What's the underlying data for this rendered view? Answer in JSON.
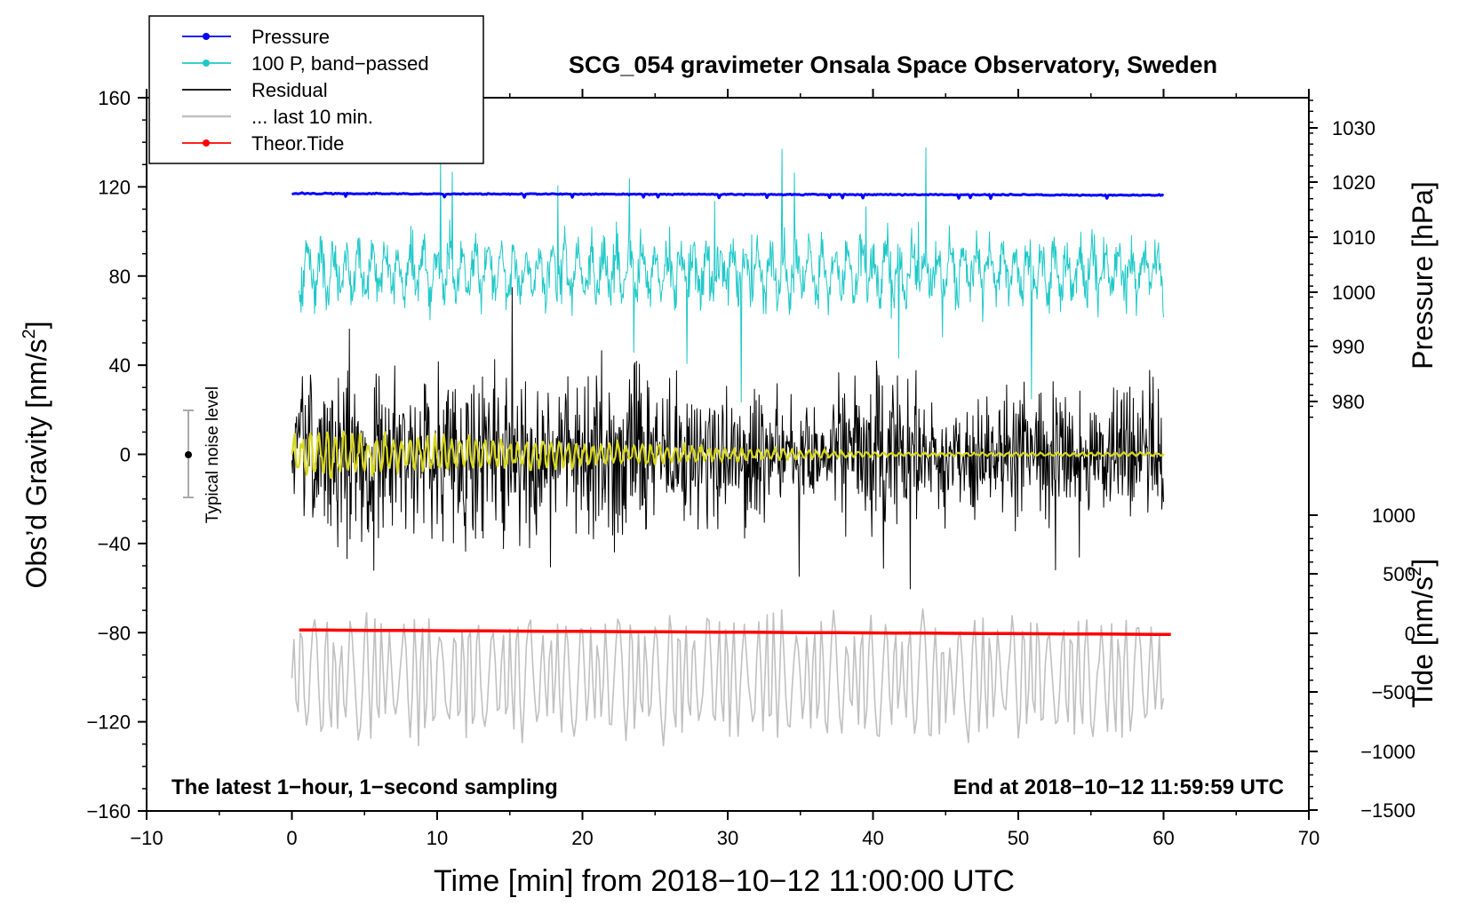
{
  "chart_data": {
    "type": "line",
    "title": "SCG_054 gravimeter Onsala Space Observatory, Sweden",
    "xlabel": "Time [min] from 2018−10−12 11:00:00 UTC",
    "ylabel_left": "Obs’d Gravity [nm/s",
    "ylabel_left_sup": "2",
    "ylabel_left_end": "]",
    "ylabel_pressure": "Pressure [hPa]",
    "ylabel_tide": "Tide [nm/s",
    "ylabel_tide_sup": "2",
    "ylabel_tide_end": "]",
    "xlim": [
      -10,
      70
    ],
    "ylim": [
      -160,
      160
    ],
    "x_ticks": [
      "−10",
      "0",
      "10",
      "20",
      "30",
      "40",
      "50",
      "60",
      "70"
    ],
    "y_ticks": [
      "160",
      "120",
      "80",
      "40",
      "0",
      "−40",
      "−80",
      "−120",
      "−160"
    ],
    "pressure_ticks": [
      "1030",
      "1020",
      "1010",
      "1000",
      "990",
      "980"
    ],
    "tide_ticks": [
      "1000",
      "500",
      "0",
      "−500",
      "−1000",
      "−1500"
    ],
    "legend": [
      {
        "label": "Pressure",
        "color": "#0000ff",
        "marker": true
      },
      {
        "label": "100 P, band−passed",
        "color": "#20c8c8",
        "marker": true
      },
      {
        "label": "Residual",
        "color": "#000000",
        "marker": false
      },
      {
        "label": "... last 10 min.",
        "color": "#c0c0c0",
        "marker": false
      },
      {
        "label": "Theor.Tide",
        "color": "#ff0000",
        "marker": true
      }
    ],
    "noise_label": "Typical noise level",
    "noise_range": [
      -20,
      20
    ],
    "annotation_left": "The latest 1−hour, 1−second sampling",
    "annotation_right": "End at 2018−10−12 11:59:59 UTC",
    "series": [
      {
        "name": "Pressure",
        "axis": "gravity",
        "x_range": [
          0,
          60
        ],
        "approx_value": 117,
        "color": "#0000ff"
      },
      {
        "name": "100 P, band-passed",
        "axis": "gravity",
        "x_range": [
          0,
          60
        ],
        "center": 82,
        "amplitude": 18,
        "color": "#20c8c8"
      },
      {
        "name": "Residual",
        "axis": "gravity",
        "x_range": [
          0,
          60
        ],
        "center": 0,
        "amplitude": 30,
        "color": "#000000"
      },
      {
        "name": "Residual smoothed",
        "axis": "gravity",
        "x_range": [
          0,
          60
        ],
        "center": 0,
        "amplitude": 8,
        "color": "#d8d820"
      },
      {
        "name": "... last 10 min.",
        "axis": "gravity",
        "x_range": [
          0,
          60
        ],
        "center": -100,
        "amplitude": 22,
        "color": "#c0c0c0"
      },
      {
        "name": "Theor.Tide",
        "axis": "gravity",
        "x_range": [
          0.5,
          60.5
        ],
        "start": -78.8,
        "end": -80.8,
        "color": "#ff0000"
      }
    ]
  }
}
